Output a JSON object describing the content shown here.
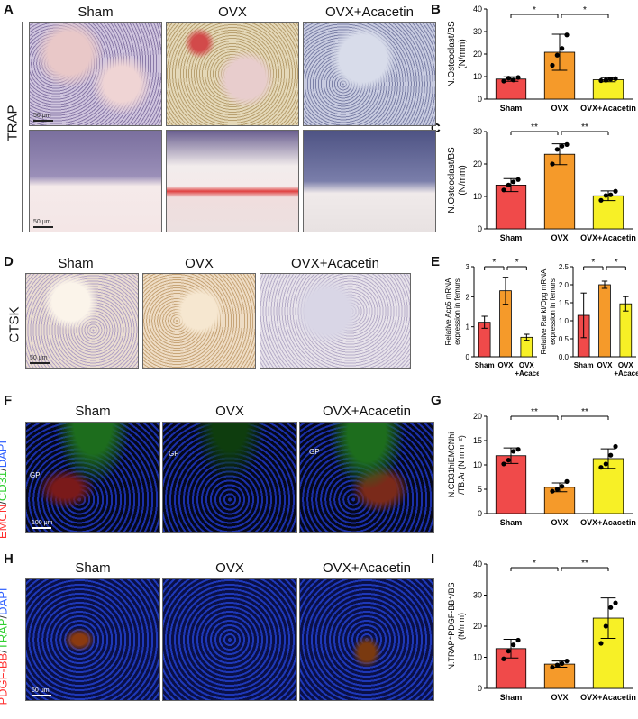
{
  "panels": {
    "A": "A",
    "B": "B",
    "C": "C",
    "D": "D",
    "E": "E",
    "F": "F",
    "G": "G",
    "H": "H",
    "I": "I"
  },
  "groups": {
    "sham": "Sham",
    "ovx": "OVX",
    "acacetin": "OVX+Acacetin"
  },
  "row_labels": {
    "trap": "TRAP",
    "ctsk": "CTSK",
    "f_stain": [
      {
        "text": "EMCN",
        "color": "#ff3030"
      },
      {
        "text": "/",
        "color": "#ffffff"
      },
      {
        "text": "CD31",
        "color": "#30d030"
      },
      {
        "text": "/",
        "color": "#ffffff"
      },
      {
        "text": "DAPI",
        "color": "#3060ff"
      }
    ],
    "h_stain": [
      {
        "text": "PDGF-BB",
        "color": "#ff3030"
      },
      {
        "text": "/",
        "color": "#ffffff"
      },
      {
        "text": "TRAP",
        "color": "#30d030"
      },
      {
        "text": "/",
        "color": "#ffffff"
      },
      {
        "text": "DAPI",
        "color": "#3060ff"
      }
    ]
  },
  "scale_bars": {
    "a_top": "50 μm",
    "a_bottom": "50 μm",
    "d": "50 μm",
    "f": "100 μm",
    "h": "50 μm"
  },
  "gp_label": "GP",
  "colors": {
    "sham": "#f04a4a",
    "ovx": "#f59a2a",
    "acacetin": "#f7f026"
  },
  "chart_data": [
    {
      "id": "B",
      "type": "bar",
      "categories": [
        "Sham",
        "OVX",
        "OVX+Acacetin"
      ],
      "values": [
        8.9,
        20.8,
        8.6
      ],
      "errors": [
        1.0,
        8.0,
        0.9
      ],
      "points": [
        [
          8.0,
          9.3,
          8.5,
          9.6
        ],
        [
          15.0,
          19.5,
          22.5,
          28.5
        ],
        [
          8.2,
          8.4,
          8.9,
          9.1
        ]
      ],
      "ylabel_lines": [
        "N.Osteoclast/BS",
        "(N/mm)"
      ],
      "ylim": [
        0,
        40
      ],
      "yticks": [
        0,
        10,
        20,
        30,
        40
      ],
      "sig": [
        {
          "from": 0,
          "to": 1,
          "label": "*"
        },
        {
          "from": 1,
          "to": 2,
          "label": "*"
        }
      ]
    },
    {
      "id": "C",
      "type": "bar",
      "categories": [
        "Sham",
        "OVX",
        "OVX+Acacetin"
      ],
      "values": [
        13.5,
        23.0,
        10.2
      ],
      "errors": [
        2.0,
        3.2,
        1.5
      ],
      "points": [
        [
          12.0,
          13.5,
          14.5,
          15.2
        ],
        [
          20.0,
          24.5,
          25.5,
          26.0
        ],
        [
          8.8,
          10.3,
          10.5,
          11.6
        ]
      ],
      "ylabel_lines": [
        "N.Osteoclast/BS",
        "(N/mm)"
      ],
      "ylim": [
        0,
        30
      ],
      "yticks": [
        0,
        10,
        20,
        30
      ],
      "sig": [
        {
          "from": 0,
          "to": 1,
          "label": "**"
        },
        {
          "from": 1,
          "to": 2,
          "label": "**"
        }
      ]
    },
    {
      "id": "E1",
      "type": "bar",
      "categories": [
        "Sham",
        "OVX",
        "OVX\n+Acacetin"
      ],
      "values": [
        1.15,
        2.2,
        0.65
      ],
      "errors": [
        0.2,
        0.45,
        0.1
      ],
      "ylabel_lines": [
        "Relative Acp5 mRNA",
        "expression in femurs"
      ],
      "ylim": [
        0,
        3
      ],
      "yticks": [
        0,
        1,
        2,
        3
      ],
      "sig": [
        {
          "from": 0,
          "to": 1,
          "label": "*"
        },
        {
          "from": 1,
          "to": 2,
          "label": "*"
        }
      ]
    },
    {
      "id": "E2",
      "type": "bar",
      "categories": [
        "Sham",
        "OVX",
        "OVX\n+Acacetin"
      ],
      "values": [
        1.15,
        2.0,
        1.47
      ],
      "errors": [
        0.62,
        0.1,
        0.2
      ],
      "ylabel_lines": [
        "Relative Rankl/Opg mRNA",
        "expression in femurs"
      ],
      "ylim": [
        0,
        2.5
      ],
      "yticks": [
        0.0,
        0.5,
        1.0,
        1.5,
        2.0,
        2.5
      ],
      "sig": [
        {
          "from": 0,
          "to": 1,
          "label": "*"
        },
        {
          "from": 1,
          "to": 2,
          "label": "*"
        }
      ]
    },
    {
      "id": "G",
      "type": "bar",
      "categories": [
        "Sham",
        "OVX",
        "OVX+Acacetin"
      ],
      "values": [
        11.9,
        5.4,
        11.3
      ],
      "errors": [
        1.6,
        0.9,
        2.0
      ],
      "points": [
        [
          10.2,
          11.0,
          12.8,
          13.2
        ],
        [
          4.6,
          5.0,
          5.6,
          6.6
        ],
        [
          9.5,
          10.2,
          12.0,
          13.8
        ]
      ],
      "ylabel_lines": [
        "N.CD31hiEMCNhi",
        "/TB.Ar (N mm⁻²)"
      ],
      "ylim": [
        0,
        20
      ],
      "yticks": [
        0,
        5,
        10,
        15,
        20
      ],
      "sig": [
        {
          "from": 0,
          "to": 1,
          "label": "**"
        },
        {
          "from": 1,
          "to": 2,
          "label": "**"
        }
      ]
    },
    {
      "id": "I",
      "type": "bar",
      "categories": [
        "Sham",
        "OVX",
        "OVX+Acacetin"
      ],
      "values": [
        12.8,
        7.8,
        22.6
      ],
      "errors": [
        3.0,
        1.0,
        6.5
      ],
      "points": [
        [
          9.5,
          12.0,
          14.0,
          15.5
        ],
        [
          6.8,
          7.5,
          8.0,
          8.8
        ],
        [
          14.5,
          20.0,
          26.0,
          27.5
        ]
      ],
      "ylabel_lines": [
        "N.TRAP⁺PDGF-BB⁺/BS",
        "(N/mm)"
      ],
      "ylim": [
        0,
        40
      ],
      "yticks": [
        0,
        10,
        20,
        30,
        40
      ],
      "sig": [
        {
          "from": 0,
          "to": 1,
          "label": "*"
        },
        {
          "from": 1,
          "to": 2,
          "label": "**"
        }
      ]
    }
  ]
}
